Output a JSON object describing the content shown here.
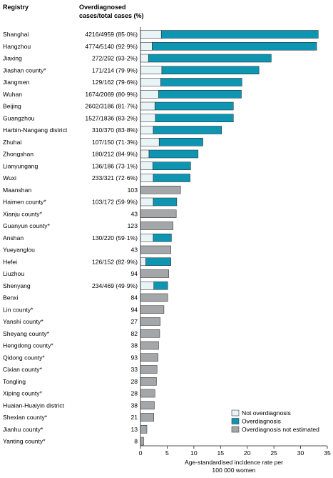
{
  "chart_data": {
    "type": "bar",
    "orientation": "horizontal",
    "stacked": true,
    "header_registry": "Registry",
    "header_cases": [
      "Overdiagnosed",
      "cases/total cases (%)"
    ],
    "xlabel": [
      "Age-standardised incidence rate per",
      "100 000 women"
    ],
    "xlim": [
      0,
      35
    ],
    "xticks": [
      "0",
      "5",
      "10",
      "15",
      "20",
      "25",
      "30",
      "35"
    ],
    "legend_position": "bottom-right",
    "legend": [
      {
        "name": "Not overdiagnosis",
        "color": "#e8f4f6"
      },
      {
        "name": "Overdiagnosis",
        "color": "#0e95b1"
      },
      {
        "name": "Overdiagnosis not estimated",
        "color": "#a4a7a9"
      }
    ],
    "rows": [
      {
        "registry": "Shanghai",
        "cases": "4216/4959 (85·0%)",
        "not_over": 3.9,
        "over": 29.4,
        "not_est": null
      },
      {
        "registry": "Hangzhou",
        "cases": "4774/5140 (92·9%)",
        "not_over": 2.2,
        "over": 30.8,
        "not_est": null
      },
      {
        "registry": "Jiaxing",
        "cases": "272/292 (93·2%)",
        "not_over": 1.5,
        "over": 23.0,
        "not_est": null
      },
      {
        "registry": "Jiashan county*",
        "cases": "171/214 (79·9%)",
        "not_over": 4.0,
        "over": 18.2,
        "not_est": null
      },
      {
        "registry": "Jiangmen",
        "cases": "129/162 (79·6%)",
        "not_over": 3.8,
        "over": 15.2,
        "not_est": null
      },
      {
        "registry": "Wuhan",
        "cases": "1674/2069 (80·9%)",
        "not_over": 3.4,
        "over": 15.5,
        "not_est": null
      },
      {
        "registry": "Beijing",
        "cases": "2602/3186 (81·7%)",
        "not_over": 2.7,
        "over": 14.7,
        "not_est": null
      },
      {
        "registry": "Guangzhou",
        "cases": "1527/1836 (83·2%)",
        "not_over": 2.8,
        "over": 14.6,
        "not_est": null
      },
      {
        "registry": "Harbin-Nangang district",
        "cases": "310/370 (83·8%)",
        "not_over": 2.4,
        "over": 12.8,
        "not_est": null
      },
      {
        "registry": "Zhuhai",
        "cases": "107/150 (71·3%)",
        "not_over": 3.5,
        "over": 8.2,
        "not_est": null
      },
      {
        "registry": "Zhongshan",
        "cases": "180/212 (84·9%)",
        "not_over": 1.6,
        "over": 9.2,
        "not_est": null
      },
      {
        "registry": "Lianyungang",
        "cases": "136/186 (73·1%)",
        "not_over": 2.3,
        "over": 7.1,
        "not_est": null
      },
      {
        "registry": "Wuxi",
        "cases": "233/321 (72·6%)",
        "not_over": 2.4,
        "over": 6.9,
        "not_est": null
      },
      {
        "registry": "Maanshan",
        "cases": "103",
        "not_over": null,
        "over": null,
        "not_est": 7.5
      },
      {
        "registry": "Haimen county*",
        "cases": "103/172 (59·9%)",
        "not_over": 2.4,
        "over": 4.4,
        "not_est": null
      },
      {
        "registry": "Xianju county*",
        "cases": "43",
        "not_over": null,
        "over": null,
        "not_est": 6.7
      },
      {
        "registry": "Guanyun county*",
        "cases": "123",
        "not_over": null,
        "over": null,
        "not_est": 6.1
      },
      {
        "registry": "Anshan",
        "cases": "130/220 (59·1%)",
        "not_over": 2.4,
        "over": 3.4,
        "not_est": null
      },
      {
        "registry": "Yueyanglou",
        "cases": "43",
        "not_over": null,
        "over": null,
        "not_est": 5.7
      },
      {
        "registry": "Hefei",
        "cases": "126/152 (82·9%)",
        "not_over": 1.0,
        "over": 4.7,
        "not_est": null
      },
      {
        "registry": "Liuzhou",
        "cases": "94",
        "not_over": null,
        "over": null,
        "not_est": 5.3
      },
      {
        "registry": "Shenyang",
        "cases": "234/469 (49·9%)",
        "not_over": 2.5,
        "over": 2.6,
        "not_est": null
      },
      {
        "registry": "Benxi",
        "cases": "84",
        "not_over": null,
        "over": null,
        "not_est": 5.1
      },
      {
        "registry": "Lin county*",
        "cases": "94",
        "not_over": null,
        "over": null,
        "not_est": 4.4
      },
      {
        "registry": "Yanshi county*",
        "cases": "27",
        "not_over": null,
        "over": null,
        "not_est": 3.7
      },
      {
        "registry": "Sheyang county*",
        "cases": "82",
        "not_over": null,
        "over": null,
        "not_est": 3.6
      },
      {
        "registry": "Hengdong county*",
        "cases": "38",
        "not_over": null,
        "over": null,
        "not_est": 3.4
      },
      {
        "registry": "Qidong county*",
        "cases": "93",
        "not_over": null,
        "over": null,
        "not_est": 3.3
      },
      {
        "registry": "Cixian county*",
        "cases": "33",
        "not_over": null,
        "over": null,
        "not_est": 3.1
      },
      {
        "registry": "Tongling",
        "cases": "28",
        "not_over": null,
        "over": null,
        "not_est": 3.0
      },
      {
        "registry": "Xiping county*",
        "cases": "28",
        "not_over": null,
        "over": null,
        "not_est": 2.7
      },
      {
        "registry": "Huaian-Huaiyin district",
        "cases": "38",
        "not_over": null,
        "over": null,
        "not_est": 2.6
      },
      {
        "registry": "Shexian county*",
        "cases": "21",
        "not_over": null,
        "over": null,
        "not_est": 2.5
      },
      {
        "registry": "Jianhu county*",
        "cases": "13",
        "not_over": null,
        "over": null,
        "not_est": 1.2
      },
      {
        "registry": "Yanting county*",
        "cases": "8",
        "not_over": null,
        "over": null,
        "not_est": 0.6
      }
    ]
  }
}
